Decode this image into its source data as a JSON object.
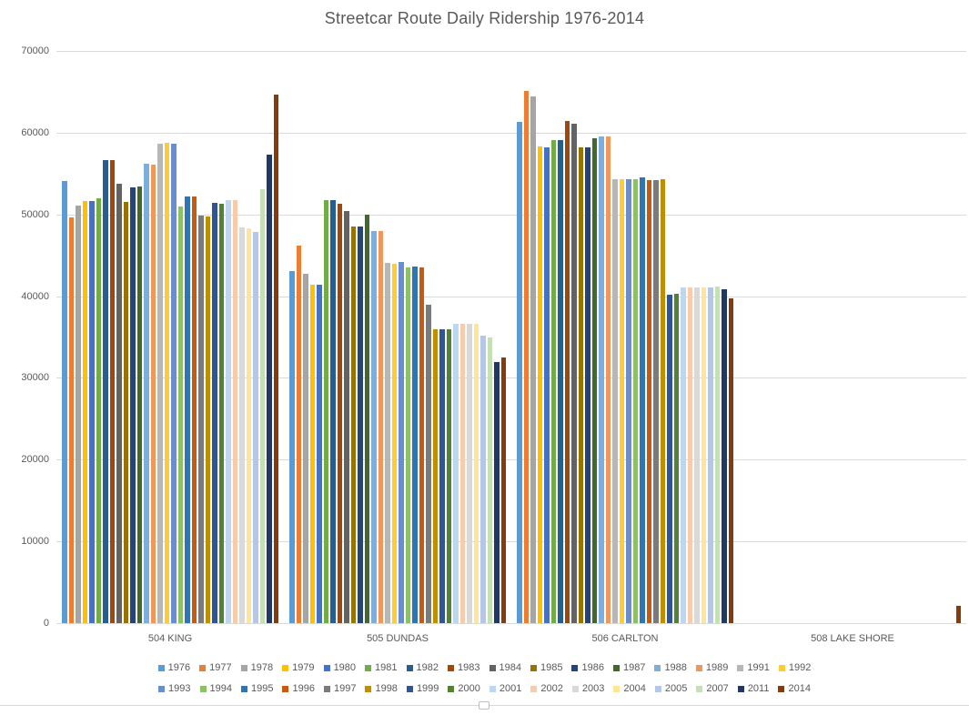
{
  "title": "Streetcar Route Daily Ridership 1976-2014",
  "chart_data": {
    "type": "bar",
    "title": "Streetcar Route Daily Ridership 1976-2014",
    "xlabel": "",
    "ylabel": "",
    "ylim": [
      0,
      70000
    ],
    "y_tick_interval": 10000,
    "y_ticks": [
      "70000",
      "60000",
      "50000",
      "40000",
      "30000",
      "20000",
      "10000",
      "0"
    ],
    "grid": true,
    "legend_position": "bottom",
    "categories": [
      "504 KING",
      "505 DUNDAS",
      "506 CARLTON",
      "508 LAKE SHORE"
    ],
    "series": [
      {
        "name": "1976",
        "color": "#5B9BD5",
        "values": [
          54100,
          43100,
          61300,
          0
        ]
      },
      {
        "name": "1977",
        "color": "#ED7D31",
        "values": [
          49600,
          46200,
          65100,
          0
        ]
      },
      {
        "name": "1978",
        "color": "#A5A5A5",
        "values": [
          51100,
          42700,
          64400,
          0
        ]
      },
      {
        "name": "1979",
        "color": "#FFC000",
        "values": [
          51600,
          41400,
          58300,
          0
        ]
      },
      {
        "name": "1980",
        "color": "#4472C4",
        "values": [
          51600,
          41400,
          58200,
          0
        ]
      },
      {
        "name": "1981",
        "color": "#70AD47",
        "values": [
          52000,
          51700,
          59100,
          0
        ]
      },
      {
        "name": "1982",
        "color": "#255E91",
        "values": [
          56600,
          51700,
          59100,
          0
        ]
      },
      {
        "name": "1983",
        "color": "#9E480E",
        "values": [
          56600,
          51300,
          61400,
          0
        ]
      },
      {
        "name": "1984",
        "color": "#636363",
        "values": [
          53700,
          50400,
          61100,
          0
        ]
      },
      {
        "name": "1985",
        "color": "#997300",
        "values": [
          51500,
          48500,
          58200,
          0
        ]
      },
      {
        "name": "1986",
        "color": "#264478",
        "values": [
          53300,
          48500,
          58200,
          0
        ]
      },
      {
        "name": "1987",
        "color": "#43682B",
        "values": [
          53400,
          50000,
          59300,
          0
        ]
      },
      {
        "name": "1988",
        "color": "#7CAFDD",
        "values": [
          56200,
          48000,
          59500,
          0
        ]
      },
      {
        "name": "1989",
        "color": "#F1975A",
        "values": [
          56100,
          48000,
          59500,
          0
        ]
      },
      {
        "name": "1991",
        "color": "#B7B7B7",
        "values": [
          58700,
          44100,
          54300,
          0
        ]
      },
      {
        "name": "1992",
        "color": "#FFCD33",
        "values": [
          58800,
          44000,
          54300,
          0
        ]
      },
      {
        "name": "1993",
        "color": "#698ED0",
        "values": [
          58700,
          44200,
          54300,
          0
        ]
      },
      {
        "name": "1994",
        "color": "#8CC168",
        "values": [
          51000,
          43500,
          54300,
          0
        ]
      },
      {
        "name": "1995",
        "color": "#2E75B6",
        "values": [
          52200,
          43600,
          54500,
          0
        ]
      },
      {
        "name": "1996",
        "color": "#C55A11",
        "values": [
          52200,
          43500,
          54200,
          0
        ]
      },
      {
        "name": "1997",
        "color": "#7B7B7B",
        "values": [
          49900,
          39000,
          54200,
          0
        ]
      },
      {
        "name": "1998",
        "color": "#BF8F00",
        "values": [
          49800,
          35900,
          54300,
          0
        ]
      },
      {
        "name": "1999",
        "color": "#2F5597",
        "values": [
          51400,
          36000,
          40200,
          0
        ]
      },
      {
        "name": "2000",
        "color": "#538135",
        "values": [
          51300,
          36000,
          40300,
          0
        ]
      },
      {
        "name": "2001",
        "color": "#BDD7EE",
        "values": [
          51800,
          36600,
          41100,
          0
        ]
      },
      {
        "name": "2002",
        "color": "#F7CBAC",
        "values": [
          51700,
          36600,
          41100,
          0
        ]
      },
      {
        "name": "2003",
        "color": "#D9D9D9",
        "values": [
          48400,
          36600,
          41100,
          0
        ]
      },
      {
        "name": "2004",
        "color": "#FFE599",
        "values": [
          48300,
          36600,
          41100,
          0
        ]
      },
      {
        "name": "2005",
        "color": "#B4C7E7",
        "values": [
          47800,
          35200,
          41100,
          0
        ]
      },
      {
        "name": "2007",
        "color": "#C5E0B4",
        "values": [
          53100,
          35000,
          41200,
          0
        ]
      },
      {
        "name": "2011",
        "color": "#1F3864",
        "values": [
          57300,
          31900,
          40800,
          0
        ]
      },
      {
        "name": "2014",
        "color": "#843C0C",
        "values": [
          64700,
          32500,
          39700,
          2100
        ]
      }
    ]
  },
  "colors": {
    "text": "#595959",
    "gridline": "#D9D9D9",
    "background": "#FFFFFF"
  }
}
